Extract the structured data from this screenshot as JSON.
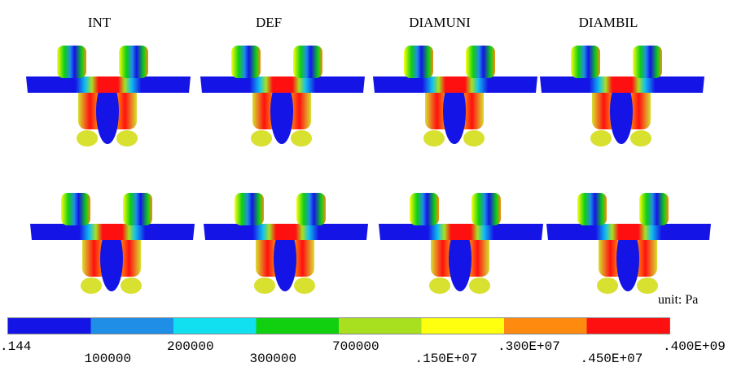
{
  "columns": [
    "INT",
    "DEF",
    "DIAMUNI",
    "DIAMBIL"
  ],
  "unit": "unit: Pa",
  "colorbar": {
    "colors": [
      "#1414e6",
      "#1e8ee6",
      "#10e0f0",
      "#10d010",
      "#a8e020",
      "#ffff10",
      "#ff8a10",
      "#ff1010"
    ],
    "labels": [
      ".144",
      "100000",
      "200000",
      "300000",
      "700000",
      ".150E+07",
      ".300E+07",
      ".450E+07",
      ".400E+09"
    ]
  }
}
